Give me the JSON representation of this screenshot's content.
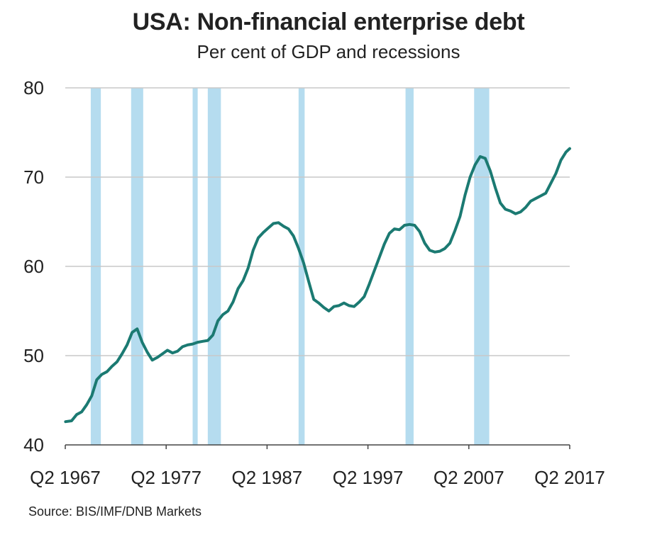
{
  "chart_data": {
    "type": "line",
    "title": "USA: Non-financial enterprise debt",
    "subtitle": "Per cent of GDP and recessions",
    "source": "Source:  BIS/IMF/DNB Markets",
    "xlabel": "",
    "ylabel": "",
    "xlim": [
      1967.375,
      2017.375
    ],
    "ylim": [
      40,
      80
    ],
    "grid": true,
    "y_ticks": [
      40,
      50,
      60,
      70,
      80
    ],
    "y_tick_labels": [
      "40",
      "50",
      "60",
      "70",
      "80"
    ],
    "x_ticks": [
      1967.375,
      1977.375,
      1987.375,
      1997.375,
      2007.375,
      2017.375
    ],
    "x_tick_labels": [
      "Q2 1967",
      "Q2 1977",
      "Q2 1987",
      "Q2 1997",
      "Q2 2007",
      "Q2 2017"
    ],
    "colors": {
      "line": "#1b7a72",
      "recession": "#b5dcef",
      "grid": "#c8c8c8"
    },
    "recessions": [
      [
        1969.9,
        1970.9
      ],
      [
        1973.9,
        1975.1
      ],
      [
        1980.0,
        1980.5
      ],
      [
        1981.5,
        1982.8
      ],
      [
        1990.5,
        1991.1
      ],
      [
        2001.1,
        2001.9
      ],
      [
        2007.9,
        2009.4
      ]
    ],
    "series": [
      {
        "x": [
          1967.4,
          1968.0,
          1968.5,
          1969.0,
          1969.5,
          1970.0,
          1970.5,
          1971.0,
          1971.5,
          1972.0,
          1972.5,
          1973.0,
          1973.5,
          1974.0,
          1974.5,
          1975.0,
          1975.5,
          1976.0,
          1976.5,
          1977.0,
          1977.5,
          1978.0,
          1978.5,
          1979.0,
          1979.5,
          1980.0,
          1980.5,
          1981.0,
          1981.5,
          1982.0,
          1982.5,
          1983.0,
          1983.5,
          1984.0,
          1984.5,
          1985.0,
          1985.5,
          1986.0,
          1986.5,
          1987.0,
          1987.5,
          1988.0,
          1988.5,
          1989.0,
          1989.5,
          1990.0,
          1990.5,
          1991.0,
          1991.5,
          1992.0,
          1992.5,
          1993.0,
          1993.5,
          1994.0,
          1994.5,
          1995.0,
          1995.5,
          1996.0,
          1996.5,
          1997.0,
          1997.5,
          1998.0,
          1998.5,
          1999.0,
          1999.5,
          2000.0,
          2000.5,
          2001.0,
          2001.5,
          2002.0,
          2002.5,
          2003.0,
          2003.5,
          2004.0,
          2004.5,
          2005.0,
          2005.5,
          2006.0,
          2006.5,
          2007.0,
          2007.5,
          2008.0,
          2008.5,
          2009.0,
          2009.5,
          2010.0,
          2010.5,
          2011.0,
          2011.5,
          2012.0,
          2012.5,
          2013.0,
          2013.5,
          2014.0,
          2014.5,
          2015.0,
          2015.5,
          2016.0,
          2016.5,
          2017.0,
          2017.375
        ],
        "values": [
          42.6,
          42.7,
          43.4,
          43.7,
          44.5,
          45.5,
          47.3,
          47.9,
          48.2,
          48.8,
          49.3,
          50.2,
          51.2,
          52.6,
          53.0,
          51.5,
          50.4,
          49.5,
          49.8,
          50.2,
          50.6,
          50.3,
          50.5,
          51.0,
          51.2,
          51.3,
          51.5,
          51.6,
          51.7,
          52.3,
          53.9,
          54.6,
          55.0,
          56.0,
          57.5,
          58.4,
          59.8,
          61.8,
          63.2,
          63.8,
          64.3,
          64.8,
          64.9,
          64.5,
          64.2,
          63.4,
          62.0,
          60.4,
          58.3,
          56.3,
          55.9,
          55.4,
          55.0,
          55.5,
          55.6,
          55.9,
          55.6,
          55.5,
          56.0,
          56.6,
          58.0,
          59.5,
          61.0,
          62.5,
          63.7,
          64.2,
          64.1,
          64.6,
          64.7,
          64.6,
          63.9,
          62.6,
          61.8,
          61.6,
          61.7,
          62.0,
          62.6,
          64.0,
          65.6,
          68.0,
          70.0,
          71.4,
          72.3,
          72.1,
          70.7,
          68.8,
          67.1,
          66.4,
          66.2,
          65.9,
          66.1,
          66.6,
          67.3,
          67.6,
          67.9,
          68.2,
          69.3,
          70.4,
          71.9,
          72.8,
          73.2
        ]
      }
    ]
  }
}
